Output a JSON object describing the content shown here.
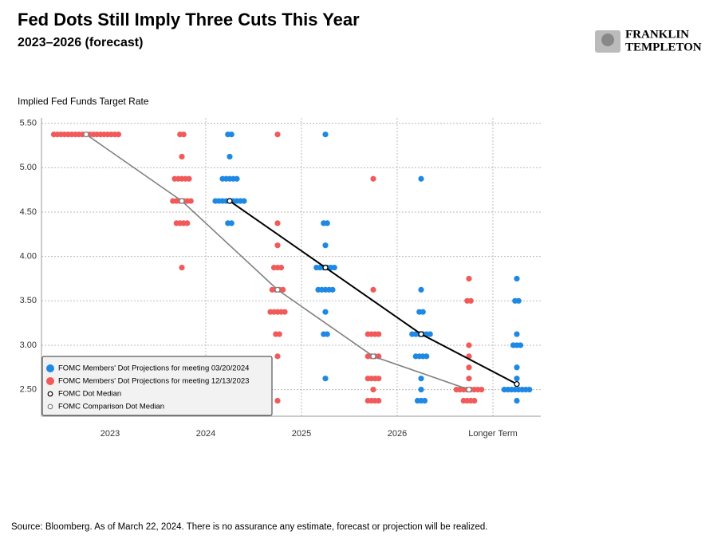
{
  "chart_data": {
    "type": "dot-plot",
    "title": "Fed Dots Still Imply Three Cuts This Year",
    "subtitle": "2023–2026 (forecast)",
    "y_label": "Implied Fed Funds Target Rate",
    "source": "Source: Bloomberg. As of March 22, 2024. There is no assurance any estimate, forecast or projection will be realized.",
    "logo": [
      "FRANKLIN",
      "TEMPLETON"
    ],
    "categories": [
      "2023",
      "2024",
      "2025",
      "2026",
      "Longer Term"
    ],
    "ylim": [
      2.2,
      5.56
    ],
    "yticks": [
      {
        "value": 2.5,
        "label": "2.50"
      },
      {
        "value": 3.0,
        "label": "3.00"
      },
      {
        "value": 3.5,
        "label": "3.50"
      },
      {
        "value": 4.0,
        "label": "4.00"
      },
      {
        "value": 4.5,
        "label": "4.50"
      },
      {
        "value": 5.0,
        "label": "5.00"
      },
      {
        "value": 5.5,
        "label": "5.50"
      }
    ],
    "grid": true,
    "legend": "lower left",
    "series": [
      {
        "name": "FOMC Members' Dot Projections for meeting 03/20/2024",
        "color": "#1e88e5",
        "values": [
          [],
          [
            5.375,
            5.375,
            5.125,
            4.875,
            4.875,
            4.875,
            4.875,
            4.875,
            4.625,
            4.625,
            4.625,
            4.625,
            4.625,
            4.625,
            4.625,
            4.625,
            4.625,
            4.375,
            4.375
          ],
          [
            5.375,
            4.375,
            4.375,
            4.125,
            3.875,
            3.875,
            3.875,
            3.875,
            3.875,
            3.875,
            3.625,
            3.625,
            3.625,
            3.625,
            3.625,
            3.375,
            3.125,
            3.125,
            2.625
          ],
          [
            4.875,
            3.625,
            3.375,
            3.375,
            3.125,
            3.125,
            3.125,
            3.125,
            3.125,
            3.125,
            2.875,
            2.875,
            2.875,
            2.875,
            2.625,
            2.5,
            2.375,
            2.375,
            2.375
          ],
          [
            3.75,
            3.5,
            3.5,
            3.125,
            3.0,
            3.0,
            3.0,
            2.75,
            2.625,
            2.5,
            2.5,
            2.5,
            2.5,
            2.5,
            2.5,
            2.5,
            2.5,
            2.375
          ]
        ]
      },
      {
        "name": "FOMC Members' Dot Projections for meeting 12/13/2023",
        "color": "#f25a5a",
        "values": [
          [
            5.375,
            5.375,
            5.375,
            5.375,
            5.375,
            5.375,
            5.375,
            5.375,
            5.375,
            5.375,
            5.375,
            5.375,
            5.375,
            5.375,
            5.375,
            5.375,
            5.375,
            5.375,
            5.375
          ],
          [
            5.375,
            5.375,
            5.125,
            4.875,
            4.875,
            4.875,
            4.875,
            4.875,
            4.625,
            4.625,
            4.625,
            4.625,
            4.625,
            4.625,
            4.375,
            4.375,
            4.375,
            4.375,
            3.875
          ],
          [
            5.375,
            4.375,
            4.125,
            3.875,
            3.875,
            3.875,
            3.625,
            3.625,
            3.625,
            3.625,
            3.375,
            3.375,
            3.375,
            3.375,
            3.375,
            3.125,
            3.125,
            2.875,
            2.375
          ],
          [
            4.875,
            3.625,
            3.125,
            3.125,
            3.125,
            3.125,
            2.875,
            2.875,
            2.875,
            2.875,
            2.625,
            2.625,
            2.625,
            2.625,
            2.5,
            2.375,
            2.375,
            2.375,
            2.375
          ],
          [
            3.75,
            3.5,
            3.5,
            3.0,
            2.875,
            2.75,
            2.625,
            2.5,
            2.5,
            2.5,
            2.5,
            2.5,
            2.5,
            2.5,
            2.5,
            2.375,
            2.375,
            2.375,
            2.375
          ]
        ]
      },
      {
        "name": "FOMC Dot Median",
        "color": "#000000",
        "values": [
          null,
          4.625,
          3.875,
          3.125,
          2.5625
        ]
      },
      {
        "name": "FOMC Comparison Dot Median",
        "color": "#808080",
        "values": [
          5.375,
          4.625,
          3.625,
          2.875,
          2.5
        ]
      }
    ]
  }
}
